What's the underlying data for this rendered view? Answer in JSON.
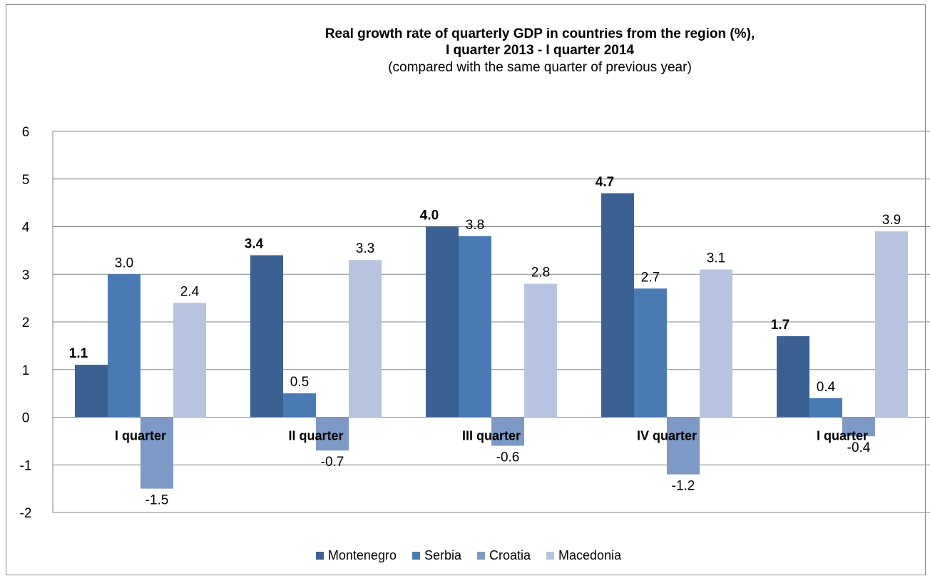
{
  "title": {
    "line1": "Real growth rate of quarterly GDP in countries from the region (%),",
    "line2": "I quarter 2013 - I quarter 2014",
    "line3": "(compared with the same quarter of previous year)"
  },
  "chart_data": {
    "type": "bar",
    "categories": [
      "I quarter",
      "II quarter",
      "III quarter",
      "IV quarter",
      "I quarter"
    ],
    "series": [
      {
        "name": "Montenegro",
        "color": "#3B6193",
        "values": [
          1.1,
          3.4,
          4.0,
          4.7,
          1.7
        ],
        "labels": [
          "1.1",
          "3.4",
          "4.0",
          "4.7",
          "1.7"
        ],
        "bold_labels": true
      },
      {
        "name": "Serbia",
        "color": "#4A7AB4",
        "values": [
          3.0,
          0.5,
          3.8,
          2.7,
          0.4
        ],
        "labels": [
          "3.0",
          "0.5",
          "3.8",
          "2.7",
          "0.4"
        ],
        "bold_labels": false
      },
      {
        "name": "Croatia",
        "color": "#7D9AC7",
        "values": [
          -1.5,
          -0.7,
          -0.6,
          -1.2,
          -0.4
        ],
        "labels": [
          "-1.5",
          "-0.7",
          "-0.6",
          "-1.2",
          "-0.4"
        ],
        "bold_labels": false
      },
      {
        "name": "Macedonia",
        "color": "#B6C4DF",
        "values": [
          2.4,
          3.3,
          2.8,
          3.1,
          3.9
        ],
        "labels": [
          "2.4",
          "3.3",
          "2.8",
          "3.1",
          "3.9"
        ],
        "bold_labels": false
      }
    ],
    "yticks": [
      "6",
      "5",
      "4",
      "3",
      "2",
      "1",
      "0",
      "-1",
      "-2"
    ],
    "ylim": [
      -2,
      6
    ],
    "grid": true,
    "legend": "bottom",
    "xlabel": "",
    "ylabel": ""
  }
}
